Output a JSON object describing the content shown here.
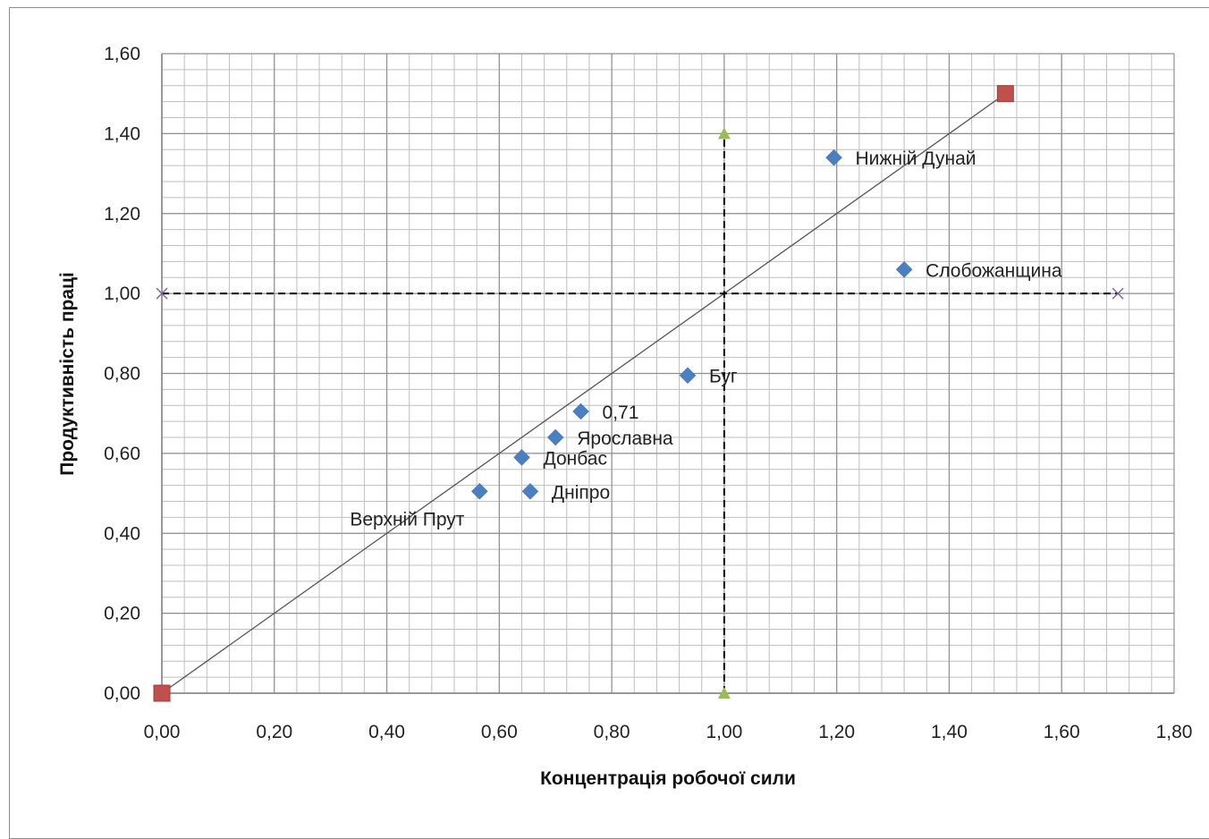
{
  "chart_data": {
    "type": "scatter",
    "title": "",
    "xlabel": "Концентрація робочої сили",
    "ylabel": "Продуктивність праці",
    "xlim": [
      0,
      1.8
    ],
    "ylim": [
      0,
      1.6
    ],
    "x_ticks": [
      "0,00",
      "0,20",
      "0,40",
      "0,60",
      "0,80",
      "1,00",
      "1,20",
      "1,40",
      "1,60",
      "1,80"
    ],
    "y_ticks": [
      "0,00",
      "0,20",
      "0,40",
      "0,60",
      "0,80",
      "1,00",
      "1,20",
      "1,40",
      "1,60"
    ],
    "grid": true,
    "legend": "none",
    "colors": {
      "regions": "#4a7fc1",
      "diagonal_markers": "#c0504d",
      "vertical_markers": "#9bbb59",
      "horizontal_markers": "#8064a2",
      "grid": "#bfbfbf",
      "diagonal_line": "#555555",
      "threshold_lines": "#000000"
    },
    "regions": [
      {
        "x": 0.565,
        "y": 0.505,
        "label": "Верхній Прут"
      },
      {
        "x": 0.655,
        "y": 0.505,
        "label": "Дніпро"
      },
      {
        "x": 0.64,
        "y": 0.59,
        "label": "Донбас"
      },
      {
        "x": 0.7,
        "y": 0.64,
        "label": "Ярославна"
      },
      {
        "x": 0.745,
        "y": 0.705,
        "label": "0,71"
      },
      {
        "x": 0.935,
        "y": 0.795,
        "label": "Буг"
      },
      {
        "x": 1.195,
        "y": 1.34,
        "label": "Нижній Дунай"
      },
      {
        "x": 1.32,
        "y": 1.06,
        "label": "Слобожанщина"
      }
    ],
    "diagonal_line": {
      "x": [
        0,
        1.5
      ],
      "y": [
        0,
        1.5
      ]
    },
    "vertical_line": {
      "x": [
        1.0,
        1.0
      ],
      "y": [
        0,
        1.4
      ]
    },
    "horizontal_line": {
      "x": [
        0,
        1.7
      ],
      "y": [
        1.0,
        1.0
      ]
    }
  }
}
